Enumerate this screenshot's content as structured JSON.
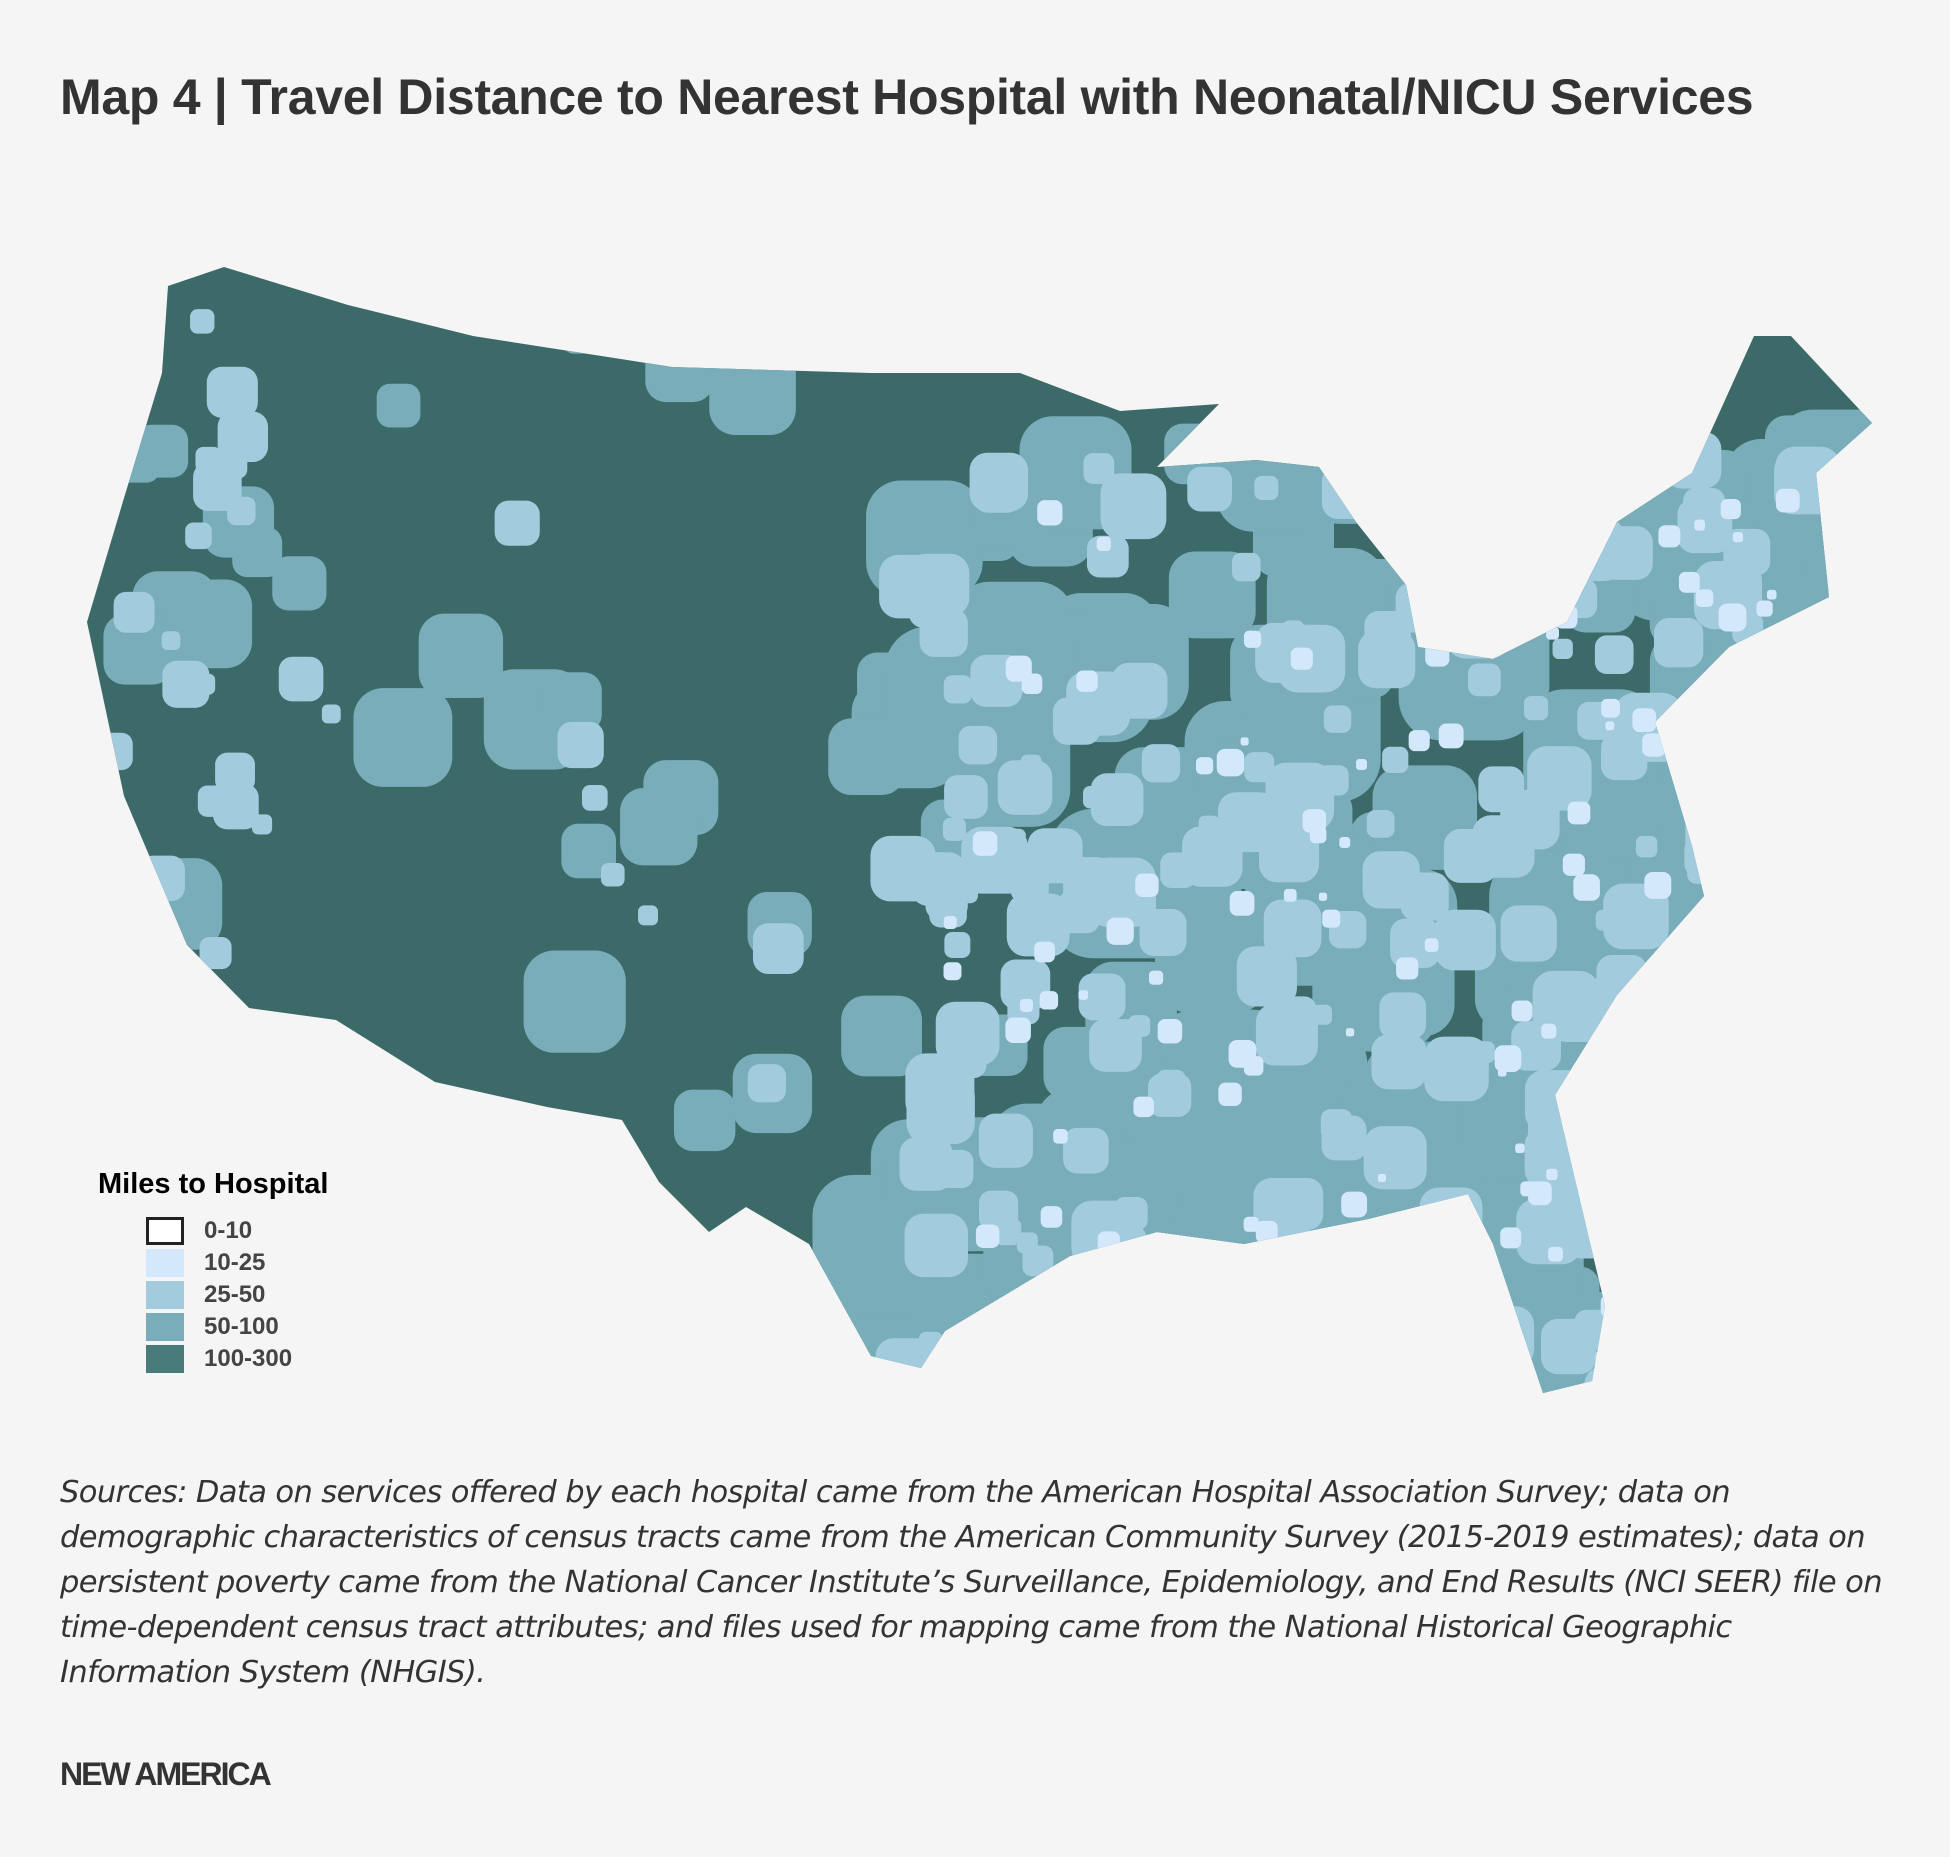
{
  "title": "Map 4 | Travel Distance to Nearest Hospital with Neonatal/NICU Services",
  "legend": {
    "title": "Miles to Hospital",
    "items": [
      {
        "label": "0-10",
        "color": "#ffffff"
      },
      {
        "label": "10-25",
        "color": "#d4e8fb"
      },
      {
        "label": "25-50",
        "color": "#a2cbdd"
      },
      {
        "label": "50-100",
        "color": "#78adb9"
      },
      {
        "label": "100-300",
        "color": "#497b7b"
      }
    ]
  },
  "map": {
    "region": "Contiguous United States",
    "darkest_color": "#3c6a69"
  },
  "sources": "Sources: Data on services offered by each hospital came from the American Hospital Association Survey; data on demographic characteristics of census tracts came from the American Community Survey (2015-2019 estimates); data on persistent poverty came from the National Cancer Institute’s Surveillance, Epidemiology, and End Results (NCI SEER) file on time-dependent census tract attributes; and files used for mapping came from the National Historical Geographic Information System (NHGIS).",
  "brand": "NEW AMERICA"
}
